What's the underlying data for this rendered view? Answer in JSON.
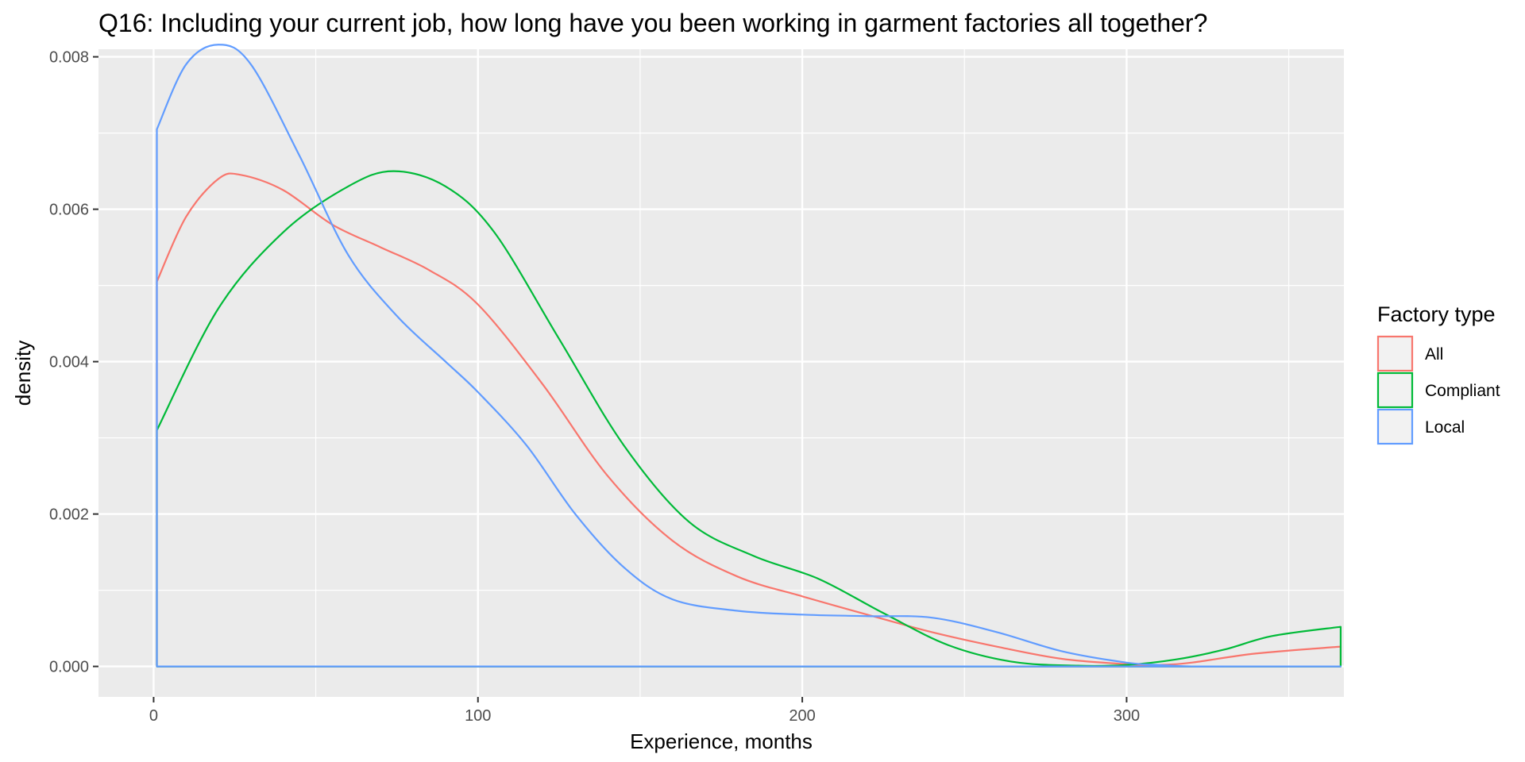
{
  "chart_data": {
    "type": "line",
    "title": "Q16: Including your current job, how long have you been working in garment factories all together?",
    "xlabel": "Experience, months",
    "ylabel": "density",
    "xlim": [
      -17,
      367
    ],
    "ylim": [
      -0.0004,
      0.0081
    ],
    "x_ticks": [
      0,
      100,
      200,
      300
    ],
    "x_tick_labels": [
      "0",
      "100",
      "200",
      "300"
    ],
    "y_ticks": [
      0,
      0.002,
      0.004,
      0.006,
      0.008
    ],
    "y_tick_labels": [
      "0.000",
      "0.002",
      "0.004",
      "0.006",
      "0.008"
    ],
    "x_minor": [
      50,
      150,
      250,
      350
    ],
    "y_minor": [
      0.001,
      0.003,
      0.005,
      0.007
    ],
    "grid": true,
    "legend_title": "Factory type",
    "legend_position": "right",
    "x_min_data": 1,
    "x_max_data": 366,
    "series": [
      {
        "name": "All",
        "color": "#F8766D",
        "x": [
          1,
          10,
          20,
          27,
          40,
          55,
          70,
          85,
          100,
          120,
          140,
          160,
          180,
          200,
          220,
          240,
          260,
          280,
          300,
          310,
          320,
          340,
          366
        ],
        "y": [
          0.00505,
          0.0059,
          0.0064,
          0.00645,
          0.00625,
          0.0058,
          0.0055,
          0.0052,
          0.00475,
          0.0037,
          0.0025,
          0.00165,
          0.00118,
          0.00092,
          0.00068,
          0.00045,
          0.00026,
          0.0001,
          3e-05,
          2e-05,
          5e-05,
          0.00017,
          0.00026
        ]
      },
      {
        "name": "Compliant",
        "color": "#00BA38",
        "x": [
          1,
          20,
          40,
          60,
          74,
          90,
          105,
          125,
          145,
          165,
          185,
          205,
          225,
          245,
          265,
          285,
          300,
          315,
          330,
          345,
          366
        ],
        "y": [
          0.0031,
          0.0047,
          0.0057,
          0.0063,
          0.0065,
          0.0063,
          0.0057,
          0.0043,
          0.0029,
          0.0019,
          0.00145,
          0.00115,
          0.0007,
          0.00028,
          6e-05,
          1e-05,
          2e-05,
          9e-05,
          0.00022,
          0.0004,
          0.00052
        ]
      },
      {
        "name": "Local",
        "color": "#619CFF",
        "x": [
          1,
          10,
          20,
          30,
          45,
          60,
          75,
          90,
          100,
          115,
          130,
          145,
          160,
          180,
          200,
          220,
          240,
          260,
          280,
          300,
          310,
          320,
          340,
          366
        ],
        "y": [
          0.00705,
          0.0079,
          0.00816,
          0.0079,
          0.0067,
          0.0054,
          0.0046,
          0.004,
          0.0036,
          0.0029,
          0.002,
          0.0013,
          0.00088,
          0.00073,
          0.00068,
          0.00066,
          0.00064,
          0.00045,
          0.0002,
          5e-05,
          2e-05,
          0.0,
          0.0,
          0.0
        ]
      }
    ]
  }
}
